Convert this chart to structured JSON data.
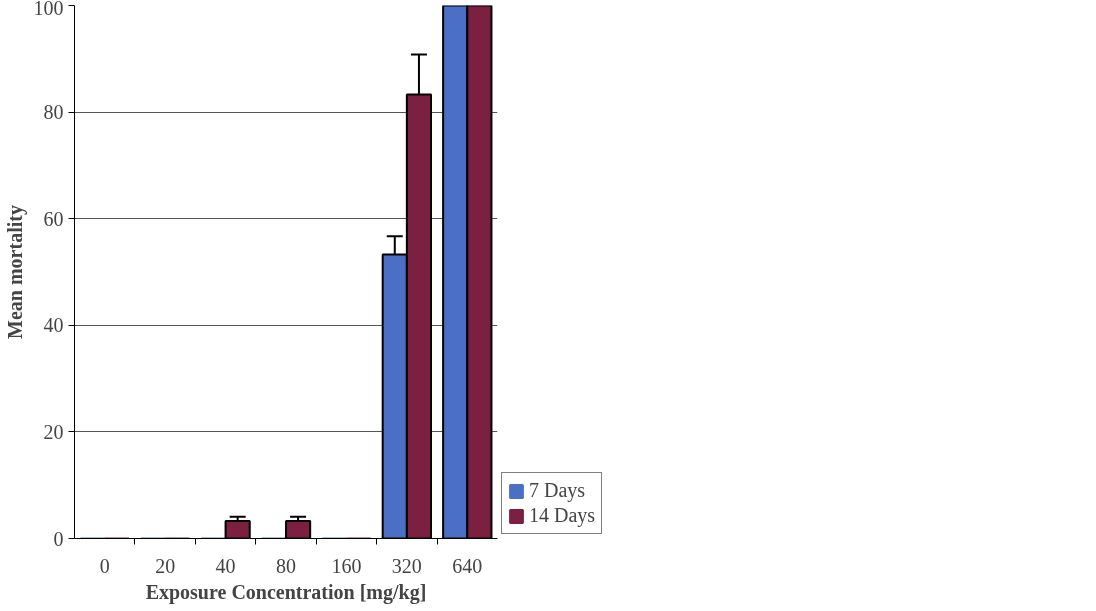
{
  "chart_data": {
    "type": "bar",
    "xlabel": "Exposure Concentration [mg/kg]",
    "ylabel": "Mean mortality",
    "categories": [
      "0",
      "20",
      "40",
      "80",
      "160",
      "320",
      "640"
    ],
    "series": [
      {
        "name": "7 Days",
        "color": "#4a6fc4",
        "values": [
          0,
          0,
          0,
          0,
          0,
          53.3,
          100
        ],
        "errors": [
          null,
          null,
          null,
          null,
          null,
          3.4,
          null
        ]
      },
      {
        "name": "14 Days",
        "color": "#7b2040",
        "values": [
          0,
          0,
          3.3,
          3.3,
          0,
          83.3,
          100
        ],
        "errors": [
          null,
          null,
          0.8,
          0.8,
          null,
          7.5,
          null
        ]
      }
    ],
    "ylim": [
      0,
      100
    ],
    "yticks": [
      0,
      20,
      40,
      60,
      80,
      100
    ],
    "grid": "y",
    "legend": "right"
  }
}
